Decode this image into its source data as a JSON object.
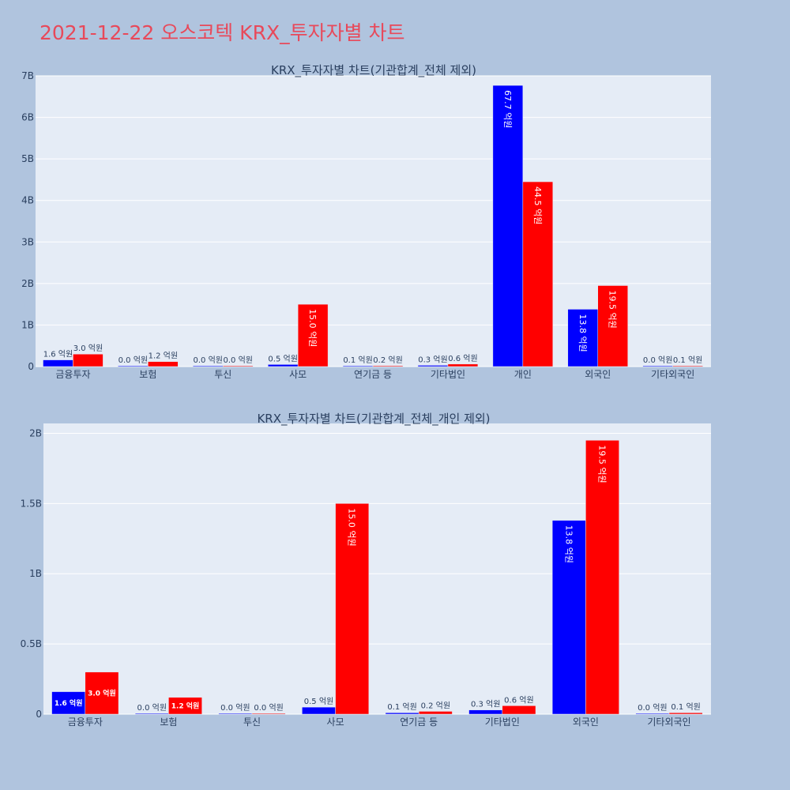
{
  "page_title": "2021-12-22 오스코텍 KRX_투자자별 차트",
  "colors": {
    "buy": "#0000ff",
    "sell": "#ff0000",
    "title": "#e8495a",
    "plot_bg": "#e5ecf6",
    "page_bg": "#b0c4de"
  },
  "chart_data": [
    {
      "type": "bar",
      "title": "KRX_투자자별 차트(기관합계_전체 제외)",
      "categories": [
        "금융투자",
        "보험",
        "투신",
        "사모",
        "연기금 등",
        "기타법인",
        "개인",
        "외국인",
        "기타외국인"
      ],
      "series": [
        {
          "values": [
            160000000,
            0,
            0,
            50000000,
            10000000,
            30000000,
            6770000000,
            1380000000,
            0
          ],
          "labels": [
            "1.6 억원",
            "0.0 억원",
            "0.0 억원",
            "0.5 억원",
            "0.1 억원",
            "0.3 억원",
            "67.7 억원",
            "13.8 억원",
            "0.0 억원"
          ]
        },
        {
          "values": [
            300000000,
            120000000,
            0,
            1500000000,
            20000000,
            60000000,
            4450000000,
            1950000000,
            10000000
          ],
          "labels": [
            "3.0 억원",
            "1.2 억원",
            "0.0 억원",
            "15.0 억원",
            "0.2 억원",
            "0.6 억원",
            "44.5 억원",
            "19.5 억원",
            "0.1 억원"
          ]
        }
      ],
      "ylim": [
        0,
        7000000000
      ],
      "yticks": [
        0,
        1000000000,
        2000000000,
        3000000000,
        4000000000,
        5000000000,
        6000000000,
        7000000000
      ],
      "yticklabels": [
        "0",
        "1B",
        "2B",
        "3B",
        "4B",
        "5B",
        "6B",
        "7B"
      ],
      "grid": true
    },
    {
      "type": "bar",
      "title": "KRX_투자자별 차트(기관합계_전체_개인 제외)",
      "categories": [
        "금융투자",
        "보험",
        "투신",
        "사모",
        "연기금 등",
        "기타법인",
        "외국인",
        "기타외국인"
      ],
      "series": [
        {
          "values": [
            160000000,
            0,
            0,
            50000000,
            10000000,
            30000000,
            1380000000,
            0
          ],
          "labels": [
            "1.6 억원",
            "0.0 억원",
            "0.0 억원",
            "0.5 억원",
            "0.1 억원",
            "0.3 억원",
            "13.8 억원",
            "0.0 억원"
          ]
        },
        {
          "values": [
            300000000,
            120000000,
            0,
            1500000000,
            20000000,
            60000000,
            1950000000,
            10000000
          ],
          "labels": [
            "3.0 억원",
            "1.2 억원",
            "0.0 억원",
            "15.0 억원",
            "0.2 억원",
            "0.6 억원",
            "19.5 억원",
            "0.1 억원"
          ]
        }
      ],
      "ylim": [
        0,
        2070000000
      ],
      "yticks": [
        0,
        500000000,
        1000000000,
        1500000000,
        2000000000
      ],
      "yticklabels": [
        "0",
        "0.5B",
        "1B",
        "1.5B",
        "2B"
      ],
      "grid": true
    }
  ]
}
